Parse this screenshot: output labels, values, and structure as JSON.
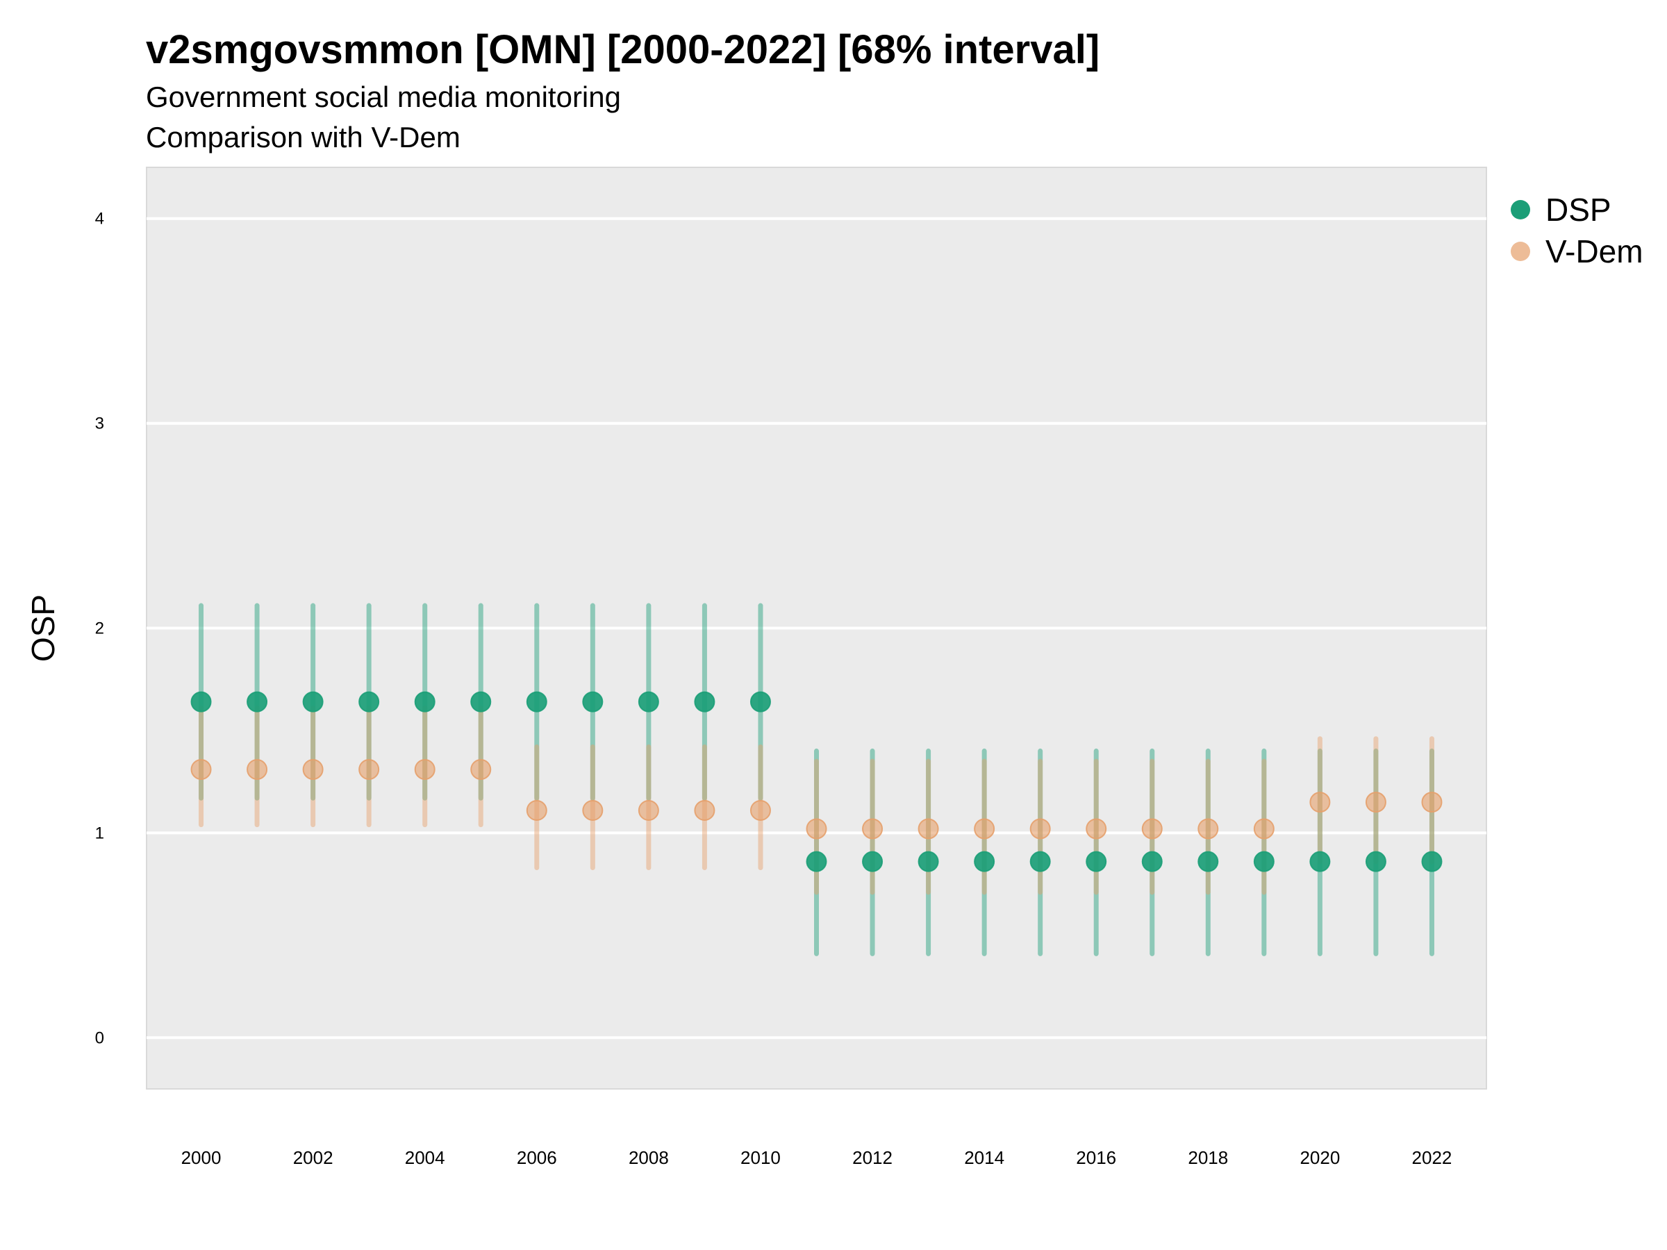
{
  "title": "v2smgovsmmon [OMN] [2000-2022] [68% interval]",
  "subtitle": "Government social media monitoring",
  "subtitle2": "Comparison with V-Dem",
  "colors": {
    "dsp": "#1b9e77",
    "vdem": "#e6a06b",
    "panel": "#ebebeb",
    "grid": "#ffffff"
  },
  "chart_data": {
    "type": "scatter",
    "title": "v2smgovsmmon [OMN] [2000-2022] [68% interval]",
    "subtitle": "Government social media monitoring",
    "xlabel": "",
    "ylabel": "OSP",
    "ylim": [
      -0.25,
      4.25
    ],
    "yticks": [
      0,
      1,
      2,
      3,
      4
    ],
    "xticks": [
      2000,
      2002,
      2004,
      2006,
      2008,
      2010,
      2012,
      2014,
      2016,
      2018,
      2020,
      2022
    ],
    "grid": true,
    "legend_position": "right",
    "x": [
      2000,
      2001,
      2002,
      2003,
      2004,
      2005,
      2006,
      2007,
      2008,
      2009,
      2010,
      2011,
      2012,
      2013,
      2014,
      2015,
      2016,
      2017,
      2018,
      2019,
      2020,
      2021,
      2022
    ],
    "series": [
      {
        "name": "DSP",
        "values": [
          1.64,
          1.64,
          1.64,
          1.64,
          1.64,
          1.64,
          1.64,
          1.64,
          1.64,
          1.64,
          1.64,
          0.86,
          0.86,
          0.86,
          0.86,
          0.86,
          0.86,
          0.86,
          0.86,
          0.86,
          0.86,
          0.86,
          0.86
        ],
        "lower": [
          1.17,
          1.17,
          1.17,
          1.17,
          1.17,
          1.17,
          1.17,
          1.17,
          1.17,
          1.17,
          1.17,
          0.41,
          0.41,
          0.41,
          0.41,
          0.41,
          0.41,
          0.41,
          0.41,
          0.41,
          0.41,
          0.41,
          0.41
        ],
        "upper": [
          2.11,
          2.11,
          2.11,
          2.11,
          2.11,
          2.11,
          2.11,
          2.11,
          2.11,
          2.11,
          2.11,
          1.4,
          1.4,
          1.4,
          1.4,
          1.4,
          1.4,
          1.4,
          1.4,
          1.4,
          1.4,
          1.4,
          1.4
        ]
      },
      {
        "name": "V-Dem",
        "values": [
          1.31,
          1.31,
          1.31,
          1.31,
          1.31,
          1.31,
          1.11,
          1.11,
          1.11,
          1.11,
          1.11,
          1.02,
          1.02,
          1.02,
          1.02,
          1.02,
          1.02,
          1.02,
          1.02,
          1.02,
          1.15,
          1.15,
          1.15
        ],
        "lower": [
          1.04,
          1.04,
          1.04,
          1.04,
          1.04,
          1.04,
          0.83,
          0.83,
          0.83,
          0.83,
          0.83,
          0.71,
          0.71,
          0.71,
          0.71,
          0.71,
          0.71,
          0.71,
          0.71,
          0.71,
          0.86,
          0.86,
          0.86
        ],
        "upper": [
          1.61,
          1.61,
          1.61,
          1.61,
          1.61,
          1.61,
          1.42,
          1.42,
          1.42,
          1.42,
          1.42,
          1.35,
          1.35,
          1.35,
          1.35,
          1.35,
          1.35,
          1.35,
          1.35,
          1.35,
          1.46,
          1.46,
          1.46
        ]
      }
    ]
  }
}
